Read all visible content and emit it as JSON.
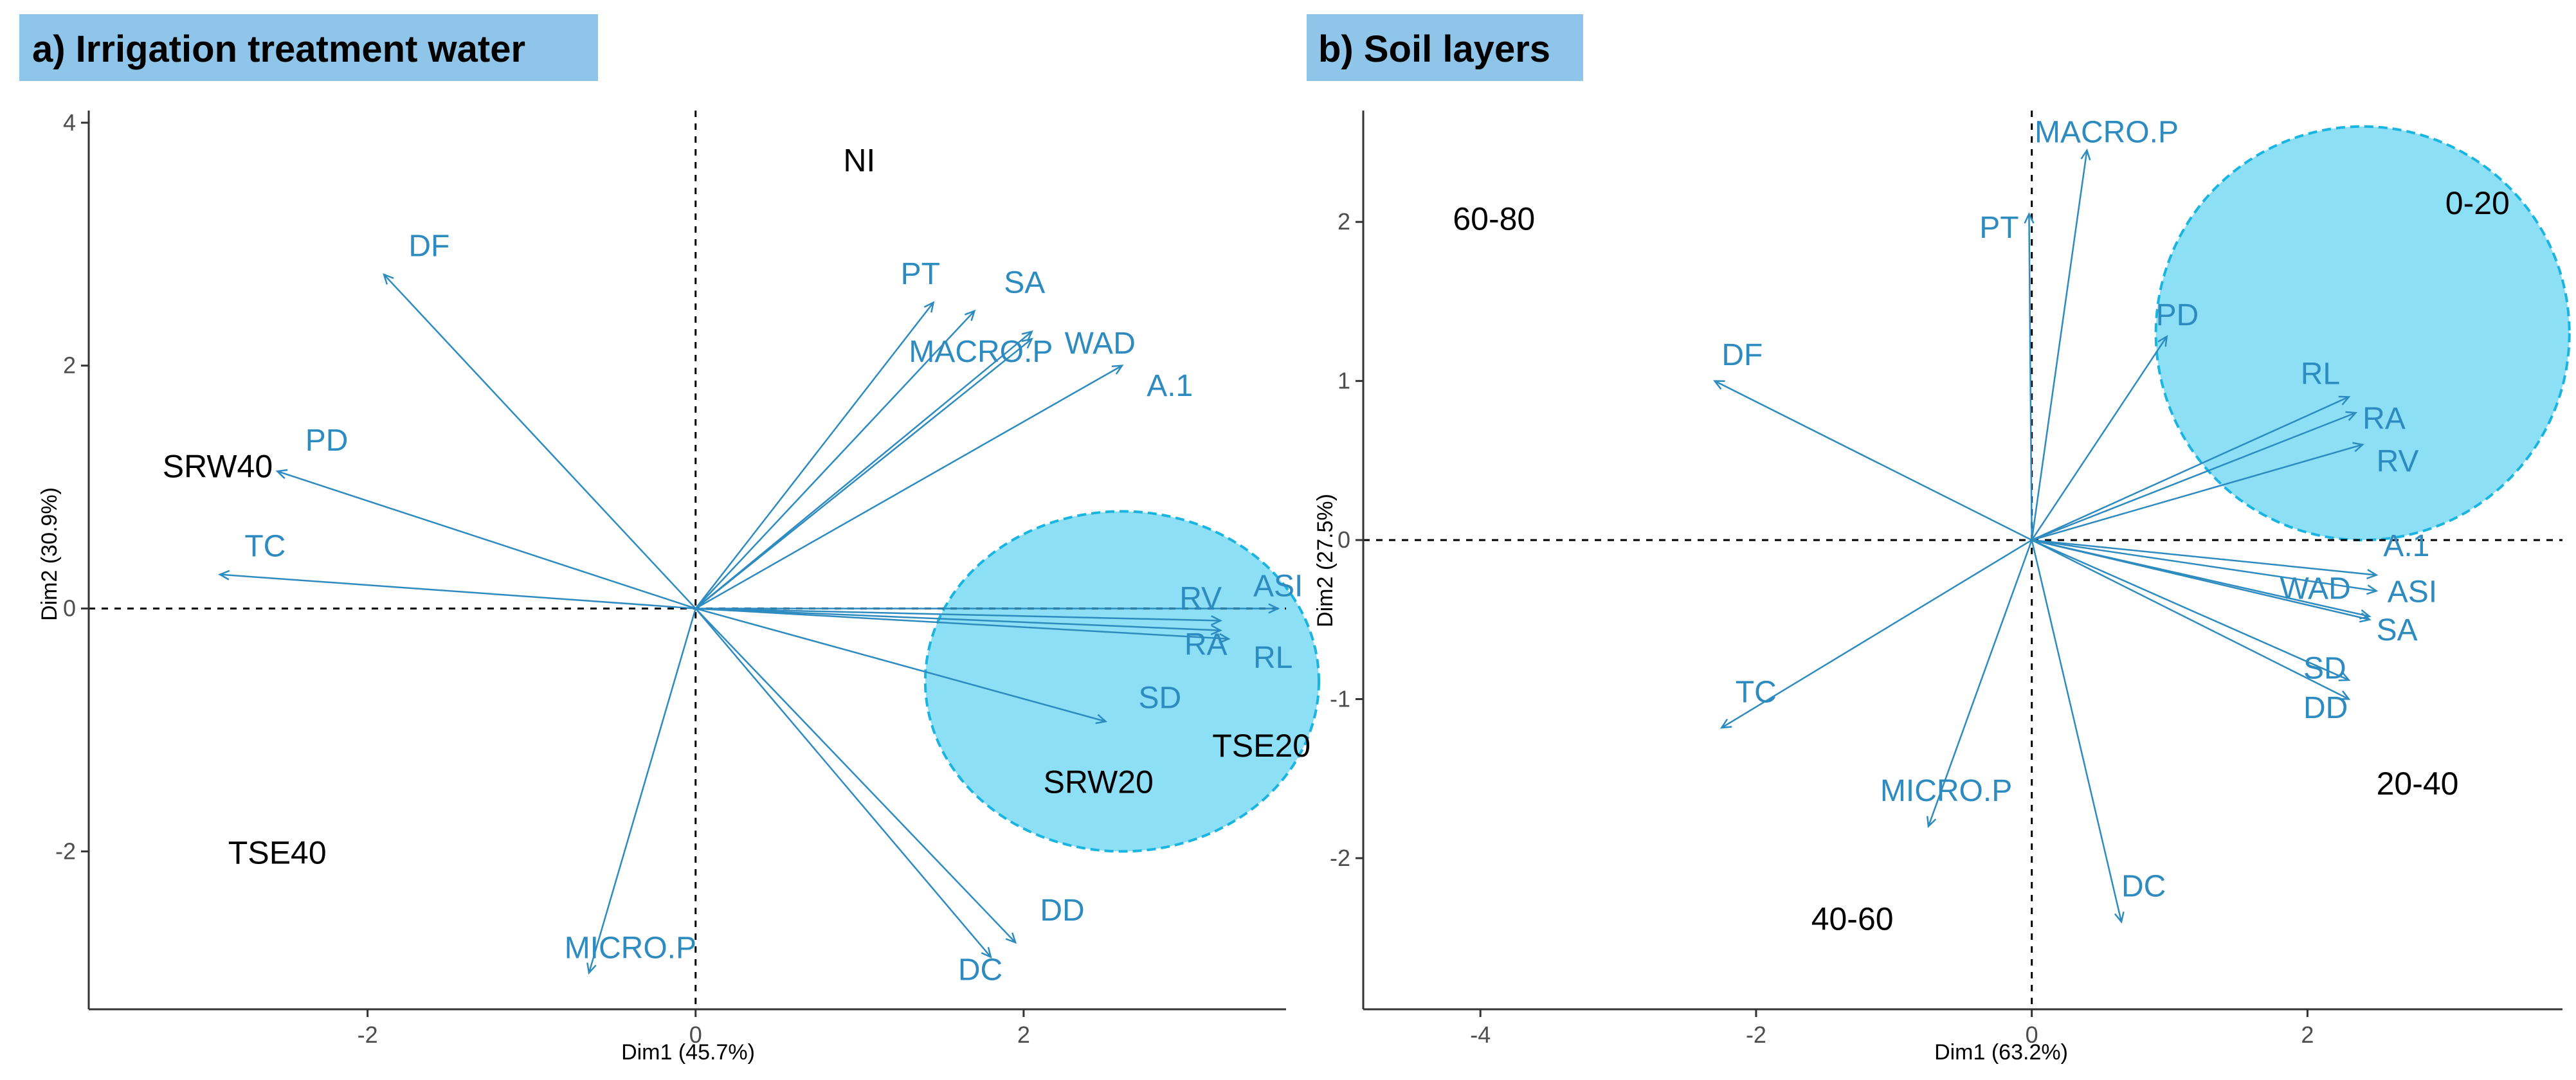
{
  "chart_data": [
    {
      "type": "scatter",
      "subtype": "pca-biplot",
      "title": "a) Irrigation treatment water",
      "xlabel": "Dim1 (45.7%)",
      "ylabel": "Dim2 (30.9%)",
      "xlim": [
        -3.7,
        3.6
      ],
      "ylim": [
        -3.3,
        4.1
      ],
      "xticks": [
        -2,
        0,
        2
      ],
      "yticks": [
        -2,
        0,
        2,
        4
      ],
      "grid": false,
      "arrow_color": "#2e8bc0",
      "ellipse_color": "#5fd3f0",
      "variables": [
        {
          "name": "DF",
          "x": -1.9,
          "y": 2.75
        },
        {
          "name": "PD",
          "x": -2.55,
          "y": 1.13
        },
        {
          "name": "TC",
          "x": -2.9,
          "y": 0.28
        },
        {
          "name": "PT",
          "x": 1.45,
          "y": 2.52
        },
        {
          "name": "SA",
          "x": 1.7,
          "y": 2.45
        },
        {
          "name": "MACRO.P",
          "x": 2.05,
          "y": 2.28
        },
        {
          "name": "WAD",
          "x": 2.05,
          "y": 2.22
        },
        {
          "name": "A.1",
          "x": 2.6,
          "y": 2.0
        },
        {
          "name": "RV",
          "x": 3.2,
          "y": -0.1
        },
        {
          "name": "ASI",
          "x": 3.55,
          "y": 0.0
        },
        {
          "name": "RA",
          "x": 3.2,
          "y": -0.18
        },
        {
          "name": "RL",
          "x": 3.25,
          "y": -0.25
        },
        {
          "name": "SD",
          "x": 2.5,
          "y": -0.93
        },
        {
          "name": "DD",
          "x": 1.95,
          "y": -2.75
        },
        {
          "name": "DC",
          "x": 1.8,
          "y": -2.87
        },
        {
          "name": "MICRO.P",
          "x": -0.65,
          "y": -3.0
        }
      ],
      "variable_labels": [
        {
          "name": "DF",
          "x": -1.75,
          "y": 2.9
        },
        {
          "name": "PD",
          "x": -2.38,
          "y": 1.3
        },
        {
          "name": "TC",
          "x": -2.75,
          "y": 0.43
        },
        {
          "name": "PT",
          "x": 1.25,
          "y": 2.67
        },
        {
          "name": "SA",
          "x": 1.88,
          "y": 2.6
        },
        {
          "name": "MACRO.P",
          "x": 1.3,
          "y": 2.03
        },
        {
          "name": "WAD",
          "x": 2.25,
          "y": 2.1
        },
        {
          "name": "A.1",
          "x": 2.75,
          "y": 1.75
        },
        {
          "name": "RV",
          "x": 2.95,
          "y": 0.0
        },
        {
          "name": "ASI",
          "x": 3.4,
          "y": 0.1
        },
        {
          "name": "RA",
          "x": 2.98,
          "y": -0.38
        },
        {
          "name": "RL",
          "x": 3.4,
          "y": -0.49
        },
        {
          "name": "SD",
          "x": 2.7,
          "y": -0.82
        },
        {
          "name": "DD",
          "x": 2.1,
          "y": -2.57
        },
        {
          "name": "DC",
          "x": 1.6,
          "y": -3.06
        },
        {
          "name": "MICRO.P",
          "x": -0.8,
          "y": -2.88
        }
      ],
      "groups": [
        {
          "name": "NI",
          "x": 0.9,
          "y": 3.6
        },
        {
          "name": "SRW40",
          "x": -3.25,
          "y": 1.08
        },
        {
          "name": "TSE20",
          "x": 3.15,
          "y": -1.22
        },
        {
          "name": "SRW20",
          "x": 2.12,
          "y": -1.52
        },
        {
          "name": "TSE40",
          "x": -2.85,
          "y": -2.1
        }
      ],
      "ellipse": {
        "cx": 2.6,
        "cy": -0.6,
        "rx": 1.2,
        "ry": 1.4
      }
    },
    {
      "type": "scatter",
      "subtype": "pca-biplot",
      "title": "b) Soil layers",
      "xlabel": "Dim1 (63.2%)",
      "ylabel": "Dim2 (27.5%)",
      "xlim": [
        -4.85,
        3.85
      ],
      "ylim": [
        -2.95,
        2.7
      ],
      "xticks": [
        -4,
        -2,
        0,
        2
      ],
      "yticks": [
        -2,
        -1,
        0,
        1,
        2
      ],
      "grid": false,
      "arrow_color": "#2e8bc0",
      "ellipse_color": "#5fd3f0",
      "variables": [
        {
          "name": "MACRO.P",
          "x": 0.4,
          "y": 2.45
        },
        {
          "name": "PT",
          "x": -0.02,
          "y": 2.05
        },
        {
          "name": "PD",
          "x": 0.98,
          "y": 1.28
        },
        {
          "name": "DF",
          "x": -2.3,
          "y": 1.0
        },
        {
          "name": "RL",
          "x": 2.3,
          "y": 0.9
        },
        {
          "name": "RA",
          "x": 2.35,
          "y": 0.8
        },
        {
          "name": "RV",
          "x": 2.4,
          "y": 0.6
        },
        {
          "name": "A.1",
          "x": 2.5,
          "y": -0.22
        },
        {
          "name": "WAD",
          "x": 2.5,
          "y": -0.32
        },
        {
          "name": "ASI",
          "x": 2.45,
          "y": -0.5
        },
        {
          "name": "SA",
          "x": 2.45,
          "y": -0.48
        },
        {
          "name": "SD",
          "x": 2.3,
          "y": -0.88
        },
        {
          "name": "DD",
          "x": 2.3,
          "y": -1.0
        },
        {
          "name": "TC",
          "x": -2.25,
          "y": -1.18
        },
        {
          "name": "MICRO.P",
          "x": -0.75,
          "y": -1.8
        },
        {
          "name": "DC",
          "x": 0.65,
          "y": -2.4
        }
      ],
      "variable_labels": [
        {
          "name": "MACRO.P",
          "x": 0.02,
          "y": 2.5
        },
        {
          "name": "PT",
          "x": -0.38,
          "y": 1.9
        },
        {
          "name": "PD",
          "x": 0.9,
          "y": 1.35
        },
        {
          "name": "DF",
          "x": -2.25,
          "y": 1.1
        },
        {
          "name": "RL",
          "x": 1.95,
          "y": 0.98
        },
        {
          "name": "RA",
          "x": 2.4,
          "y": 0.7
        },
        {
          "name": "RV",
          "x": 2.5,
          "y": 0.43
        },
        {
          "name": "A.1",
          "x": 2.55,
          "y": -0.1
        },
        {
          "name": "WAD",
          "x": 1.8,
          "y": -0.37
        },
        {
          "name": "ASI",
          "x": 2.58,
          "y": -0.39
        },
        {
          "name": "SA",
          "x": 2.5,
          "y": -0.63
        },
        {
          "name": "SD",
          "x": 1.97,
          "y": -0.87
        },
        {
          "name": "DD",
          "x": 1.97,
          "y": -1.12
        },
        {
          "name": "TC",
          "x": -2.15,
          "y": -1.02
        },
        {
          "name": "MICRO.P",
          "x": -1.1,
          "y": -1.64
        },
        {
          "name": "DC",
          "x": 0.65,
          "y": -2.24
        }
      ],
      "groups": [
        {
          "name": "0-20",
          "x": 3.0,
          "y": 2.05
        },
        {
          "name": "60-80",
          "x": -4.2,
          "y": 1.95
        },
        {
          "name": "20-40",
          "x": 2.5,
          "y": -1.6
        },
        {
          "name": "40-60",
          "x": -1.6,
          "y": -2.45
        }
      ],
      "ellipse": {
        "cx": 2.4,
        "cy": 1.3,
        "rx": 1.5,
        "ry": 1.3
      }
    }
  ]
}
